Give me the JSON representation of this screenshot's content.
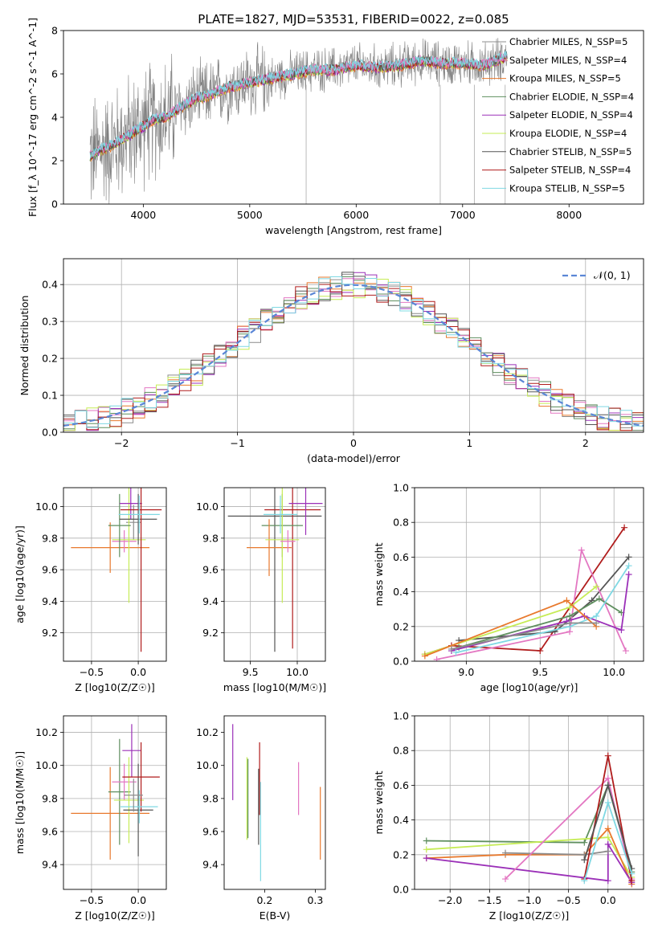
{
  "figure": {
    "title": "PLATE=1827, MJD=53531, FIBERID=0022, z=0.085"
  },
  "colors": {
    "chabrier_miles": "#8c8c8c",
    "salpeter_miles": "#e377c2",
    "kroupa_miles": "#e8792d",
    "chabrier_elodie": "#5f8f5f",
    "salpeter_elodie": "#9b30b8",
    "kroupa_elodie": "#c6ec56",
    "chabrier_stelib": "#555555",
    "salpeter_stelib": "#b01c1c",
    "kroupa_stelib": "#7fd8e3",
    "normal_curve": "#5a86d6",
    "spectrum_data": "#808080",
    "grid": "#b0b0b0"
  },
  "chart_data": [
    {
      "id": "spectrum",
      "type": "line",
      "xlabel": "wavelength [Angstrom, rest frame]",
      "ylabel": "Flux [f_λ 10^-17 erg cm^-2 s^-1 A^-1]",
      "xlim": [
        3250,
        8700
      ],
      "ylim": [
        0,
        8
      ],
      "xticks": [
        4000,
        5000,
        6000,
        7000,
        8000
      ],
      "yticks": [
        0,
        2,
        4,
        6,
        8
      ],
      "grid": false,
      "legend_position": "top-right",
      "legend": [
        {
          "name": "Chabrier MILES, N_SSP=5",
          "color_key": "chabrier_miles"
        },
        {
          "name": "Salpeter MILES, N_SSP=4",
          "color_key": "salpeter_miles"
        },
        {
          "name": "Kroupa MILES, N_SSP=5",
          "color_key": "kroupa_miles"
        },
        {
          "name": "Chabrier ELODIE, N_SSP=4",
          "color_key": "chabrier_elodie"
        },
        {
          "name": "Salpeter ELODIE, N_SSP=4",
          "color_key": "salpeter_elodie"
        },
        {
          "name": "Kroupa ELODIE, N_SSP=4",
          "color_key": "kroupa_elodie"
        },
        {
          "name": "Chabrier STELIB, N_SSP=5",
          "color_key": "chabrier_stelib"
        },
        {
          "name": "Salpeter STELIB, N_SSP=4",
          "color_key": "salpeter_stelib"
        },
        {
          "name": "Kroupa STELIB, N_SSP=5",
          "color_key": "kroupa_stelib"
        }
      ],
      "model_envelope": {
        "x": [
          3500,
          3600,
          3700,
          3800,
          3900,
          4000,
          4100,
          4200,
          4300,
          4400,
          4500,
          4600,
          4700,
          4800,
          4900,
          5000,
          5200,
          5400,
          5600,
          5800,
          6000,
          6200,
          6400,
          6600,
          6800,
          7000,
          7200,
          7400
        ],
        "y": [
          2.2,
          2.5,
          2.7,
          3.0,
          3.3,
          3.6,
          3.9,
          4.0,
          4.3,
          4.6,
          4.9,
          5.0,
          5.2,
          5.4,
          5.5,
          5.6,
          5.8,
          6.0,
          6.2,
          6.2,
          6.4,
          6.3,
          6.4,
          6.6,
          6.5,
          6.5,
          6.4,
          6.8
        ]
      }
    },
    {
      "id": "residual-histogram",
      "type": "line",
      "xlabel": "(data-model)/error",
      "ylabel": "Normed distribution",
      "xlim": [
        -2.5,
        2.5
      ],
      "ylim": [
        0,
        0.47
      ],
      "xticks": [
        -2,
        -1,
        0,
        1,
        2
      ],
      "yticks": [
        0.0,
        0.1,
        0.2,
        0.3,
        0.4
      ],
      "grid": true,
      "legend_position": "top-right",
      "legend": [
        {
          "name": "𝒩(0, 1)",
          "color_key": "normal_curve"
        }
      ],
      "bin_width": 0.1
    },
    {
      "id": "age-vs-Z",
      "type": "scatter",
      "xlabel": "Z [log10(Z/Z☉)]",
      "ylabel": "age [log10(age/yr)]",
      "xlim": [
        -0.8,
        0.3
      ],
      "ylim": [
        9.02,
        10.12
      ],
      "xticks": [
        -0.5,
        0.0
      ],
      "yticks": [
        9.2,
        9.4,
        9.6,
        9.8,
        10.0
      ],
      "grid": true,
      "series": [
        {
          "color_key": "kroupa_miles",
          "x": -0.3,
          "xerr": 0.42,
          "y": 9.74,
          "yerr": 0.16
        },
        {
          "color_key": "salpeter_miles",
          "x": -0.15,
          "xerr": 0.13,
          "y": 9.78,
          "yerr": 0.07
        },
        {
          "color_key": "chabrier_miles",
          "x": -0.05,
          "xerr": 0.08,
          "y": 9.9,
          "yerr": 0.11
        },
        {
          "color_key": "kroupa_elodie",
          "x": -0.1,
          "xerr": 0.18,
          "y": 9.79,
          "yerr": 0.4
        },
        {
          "color_key": "chabrier_elodie",
          "x": -0.2,
          "xerr": 0.12,
          "y": 9.88,
          "yerr": 0.2
        },
        {
          "color_key": "salpeter_elodie",
          "x": -0.08,
          "xerr": 0.12,
          "y": 10.02,
          "yerr": 0.1
        },
        {
          "color_key": "chabrier_stelib",
          "x": 0.0,
          "xerr": 0.2,
          "y": 9.92,
          "yerr": 0.16
        },
        {
          "color_key": "salpeter_stelib",
          "x": 0.03,
          "xerr": 0.22,
          "y": 9.98,
          "yerr": 0.9
        },
        {
          "color_key": "kroupa_stelib",
          "x": 0.01,
          "xerr": 0.22,
          "y": 9.95,
          "yerr": 0.12
        }
      ]
    },
    {
      "id": "age-vs-mass",
      "type": "scatter",
      "xlabel": "mass [log10(M/M☉)]",
      "ylabel": "",
      "xlim": [
        9.22,
        10.3
      ],
      "ylim": [
        9.02,
        10.12
      ],
      "xticks": [
        9.5,
        10.0
      ],
      "yticks": [
        9.2,
        9.4,
        9.6,
        9.8,
        10.0
      ],
      "grid": true,
      "series": [
        {
          "color_key": "chabrier_stelib",
          "x": 9.76,
          "xerr": 0.5,
          "y": 9.94,
          "yerr": 0.86
        },
        {
          "color_key": "salpeter_stelib",
          "x": 9.95,
          "xerr": 0.3,
          "y": 9.98,
          "yerr": 0.88
        },
        {
          "color_key": "salpeter_elodie",
          "x": 10.09,
          "xerr": 0.18,
          "y": 10.02,
          "yerr": 0.2
        },
        {
          "color_key": "chabrier_elodie",
          "x": 9.84,
          "xerr": 0.22,
          "y": 9.88,
          "yerr": 0.2
        },
        {
          "color_key": "kroupa_miles",
          "x": 9.7,
          "xerr": 0.24,
          "y": 9.74,
          "yerr": 0.18
        },
        {
          "color_key": "kroupa_elodie",
          "x": 9.84,
          "xerr": 0.18,
          "y": 9.79,
          "yerr": 0.4
        },
        {
          "color_key": "kroupa_stelib",
          "x": 9.82,
          "xerr": 0.18,
          "y": 9.95,
          "yerr": 0.12
        },
        {
          "color_key": "salpeter_miles",
          "x": 9.9,
          "xerr": 0.08,
          "y": 9.78,
          "yerr": 0.07
        }
      ]
    },
    {
      "id": "weight-vs-age",
      "type": "line",
      "xlabel": "age [log10(age/yr)]",
      "ylabel": "mass weight",
      "xlim": [
        8.65,
        10.2
      ],
      "ylim": [
        0.0,
        1.0
      ],
      "xticks": [
        9.0,
        9.5,
        10.0
      ],
      "yticks": [
        0.0,
        0.2,
        0.4,
        0.6,
        0.8,
        1.0
      ],
      "grid": true,
      "series": [
        {
          "color_key": "salpeter_stelib",
          "x": [
            8.72,
            8.9,
            9.5,
            10.07
          ],
          "y": [
            0.04,
            0.09,
            0.06,
            0.77
          ]
        },
        {
          "color_key": "chabrier_stelib",
          "x": [
            8.95,
            9.6,
            9.85,
            10.1
          ],
          "y": [
            0.12,
            0.17,
            0.35,
            0.6
          ]
        },
        {
          "color_key": "salpeter_miles",
          "x": [
            8.8,
            9.7,
            9.78,
            10.08
          ],
          "y": [
            0.01,
            0.17,
            0.64,
            0.06
          ]
        },
        {
          "color_key": "kroupa_elodie",
          "x": [
            8.72,
            9.7,
            9.88
          ],
          "y": [
            0.04,
            0.31,
            0.43
          ]
        },
        {
          "color_key": "chabrier_elodie",
          "x": [
            8.95,
            9.7,
            9.9,
            10.05
          ],
          "y": [
            0.08,
            0.26,
            0.36,
            0.28
          ]
        },
        {
          "color_key": "salpeter_elodie",
          "x": [
            8.9,
            9.68,
            9.8,
            10.05,
            10.1
          ],
          "y": [
            0.06,
            0.23,
            0.26,
            0.18,
            0.5
          ]
        },
        {
          "color_key": "kroupa_stelib",
          "x": [
            8.93,
            9.7,
            9.88,
            10.1
          ],
          "y": [
            0.05,
            0.2,
            0.26,
            0.55
          ]
        },
        {
          "color_key": "kroupa_miles",
          "x": [
            8.72,
            9.68,
            9.88
          ],
          "y": [
            0.03,
            0.35,
            0.2
          ]
        },
        {
          "color_key": "chabrier_miles",
          "x": [
            8.9,
            9.7,
            9.88
          ],
          "y": [
            0.07,
            0.22,
            0.22
          ]
        }
      ]
    },
    {
      "id": "mass-vs-Z",
      "type": "scatter",
      "xlabel": "Z [log10(Z/Z☉)]",
      "ylabel": "mass [log10(M/M☉)]",
      "xlim": [
        -0.8,
        0.3
      ],
      "ylim": [
        9.25,
        10.3
      ],
      "xticks": [
        -0.5,
        0.0
      ],
      "yticks": [
        9.4,
        9.6,
        9.8,
        10.0,
        10.2
      ],
      "grid": true,
      "series": [
        {
          "color_key": "kroupa_miles",
          "x": -0.3,
          "xerr": 0.42,
          "y": 9.71,
          "yerr": 0.28
        },
        {
          "color_key": "chabrier_elodie",
          "x": -0.2,
          "xerr": 0.12,
          "y": 9.84,
          "yerr": 0.32
        },
        {
          "color_key": "salpeter_miles",
          "x": -0.15,
          "xerr": 0.13,
          "y": 9.9,
          "yerr": 0.11
        },
        {
          "color_key": "kroupa_elodie",
          "x": -0.1,
          "xerr": 0.16,
          "y": 9.79,
          "yerr": 0.26
        },
        {
          "color_key": "salpeter_elodie",
          "x": -0.07,
          "xerr": 0.1,
          "y": 10.09,
          "yerr": 0.16
        },
        {
          "color_key": "chabrier_stelib",
          "x": 0.0,
          "xerr": 0.16,
          "y": 9.73,
          "yerr": 0.28
        },
        {
          "color_key": "salpeter_stelib",
          "x": 0.03,
          "xerr": 0.2,
          "y": 9.93,
          "yerr": 0.21
        },
        {
          "color_key": "kroupa_stelib",
          "x": 0.01,
          "xerr": 0.2,
          "y": 9.75,
          "yerr": 0.1
        },
        {
          "color_key": "chabrier_miles",
          "x": -0.05,
          "xerr": 0.1,
          "y": 9.82,
          "yerr": 0.1
        }
      ]
    },
    {
      "id": "mass-vs-EBV",
      "type": "scatter",
      "xlabel": "E(B-V)",
      "ylabel": "",
      "xlim": [
        0.12,
        0.32
      ],
      "ylim": [
        9.25,
        10.3
      ],
      "xticks": [
        0.2,
        0.3
      ],
      "yticks": [
        9.4,
        9.6,
        9.8,
        10.0,
        10.2
      ],
      "grid": false,
      "series": [
        {
          "color_key": "salpeter_elodie",
          "x": 0.137,
          "y": 10.02,
          "yerr": 0.23
        },
        {
          "color_key": "kroupa_elodie",
          "x": 0.165,
          "y": 9.8,
          "yerr": 0.25
        },
        {
          "color_key": "chabrier_elodie",
          "x": 0.167,
          "y": 9.8,
          "yerr": 0.24
        },
        {
          "color_key": "chabrier_stelib",
          "x": 0.188,
          "y": 9.75,
          "yerr": 0.23
        },
        {
          "color_key": "salpeter_stelib",
          "x": 0.19,
          "y": 9.92,
          "yerr": 0.22
        },
        {
          "color_key": "kroupa_stelib",
          "x": 0.192,
          "y": 9.6,
          "yerr": 0.3
        },
        {
          "color_key": "salpeter_miles",
          "x": 0.267,
          "y": 9.86,
          "yerr": 0.16
        },
        {
          "color_key": "kroupa_miles",
          "x": 0.31,
          "y": 9.65,
          "yerr": 0.22
        }
      ]
    },
    {
      "id": "weight-vs-Z",
      "type": "line",
      "xlabel": "Z [log10(Z/Z☉)]",
      "ylabel": "mass weight",
      "xlim": [
        -2.45,
        0.45
      ],
      "ylim": [
        0.0,
        1.0
      ],
      "xticks": [
        -2.0,
        -1.5,
        -1.0,
        -0.5,
        0.0
      ],
      "yticks": [
        0.0,
        0.2,
        0.4,
        0.6,
        0.8,
        1.0
      ],
      "grid": true,
      "series": [
        {
          "color_key": "chabrier_elodie",
          "x": [
            -2.3,
            -0.3,
            0.0,
            0.3
          ],
          "y": [
            0.28,
            0.27,
            0.6,
            0.1
          ]
        },
        {
          "color_key": "kroupa_elodie",
          "x": [
            -2.3,
            0.0,
            0.3
          ],
          "y": [
            0.23,
            0.3,
            0.07
          ]
        },
        {
          "color_key": "kroupa_miles",
          "x": [
            -2.3,
            -1.3,
            -0.3,
            0.0,
            0.3
          ],
          "y": [
            0.18,
            0.2,
            0.2,
            0.35,
            0.03
          ]
        },
        {
          "color_key": "salpeter_elodie",
          "x": [
            -2.3,
            0.0,
            0.0,
            0.3
          ],
          "y": [
            0.18,
            0.05,
            0.26,
            0.04
          ]
        },
        {
          "color_key": "chabrier_miles",
          "x": [
            -1.3,
            -0.3,
            0.0
          ],
          "y": [
            0.21,
            0.2,
            0.22
          ]
        },
        {
          "color_key": "salpeter_miles",
          "x": [
            -1.3,
            0.0,
            0.3
          ],
          "y": [
            0.06,
            0.64,
            0.06
          ]
        },
        {
          "color_key": "salpeter_stelib",
          "x": [
            -0.3,
            0.0,
            0.3
          ],
          "y": [
            0.06,
            0.77,
            0.05
          ]
        },
        {
          "color_key": "chabrier_stelib",
          "x": [
            -0.3,
            0.0,
            0.3
          ],
          "y": [
            0.17,
            0.6,
            0.12
          ]
        },
        {
          "color_key": "kroupa_stelib",
          "x": [
            -0.3,
            0.0,
            0.3
          ],
          "y": [
            0.05,
            0.5,
            0.09
          ]
        }
      ]
    }
  ]
}
